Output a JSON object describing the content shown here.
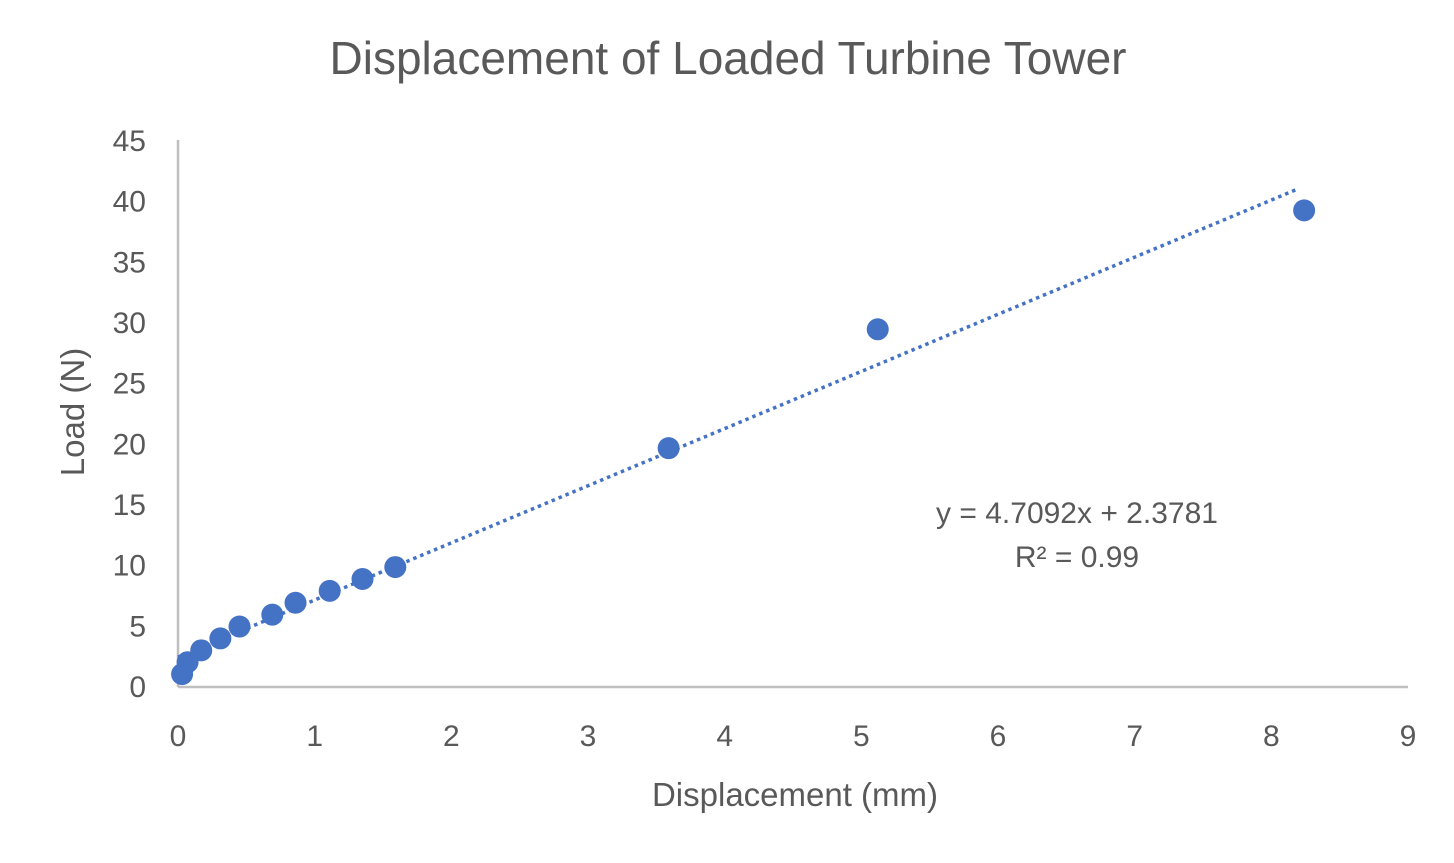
{
  "chart_data": {
    "type": "scatter",
    "title": "Displacement of Loaded Turbine Tower",
    "xlabel": "Displacement (mm)",
    "ylabel": "Load (N)",
    "xlim": [
      0,
      9
    ],
    "ylim": [
      0,
      45
    ],
    "xticks": [
      0,
      1,
      2,
      3,
      4,
      5,
      6,
      7,
      8,
      9
    ],
    "yticks": [
      0,
      5,
      10,
      15,
      20,
      25,
      30,
      35,
      40,
      45
    ],
    "grid": false,
    "legend": "none",
    "color": "#4472C4",
    "x": [
      0.03,
      0.07,
      0.17,
      0.31,
      0.45,
      0.69,
      0.86,
      1.11,
      1.35,
      1.59,
      3.59,
      5.12,
      8.24
    ],
    "y": [
      0.98,
      1.96,
      2.94,
      3.92,
      4.9,
      5.88,
      6.86,
      7.84,
      8.82,
      9.8,
      19.6,
      29.4,
      39.2
    ],
    "trendline": {
      "type": "linear",
      "slope": 4.7092,
      "intercept": 2.3781,
      "x_range": [
        0,
        8.19
      ],
      "style": "dotted",
      "equation_label": "y = 4.7092x + 2.3781",
      "r2_label": "R² = 0.99"
    }
  }
}
